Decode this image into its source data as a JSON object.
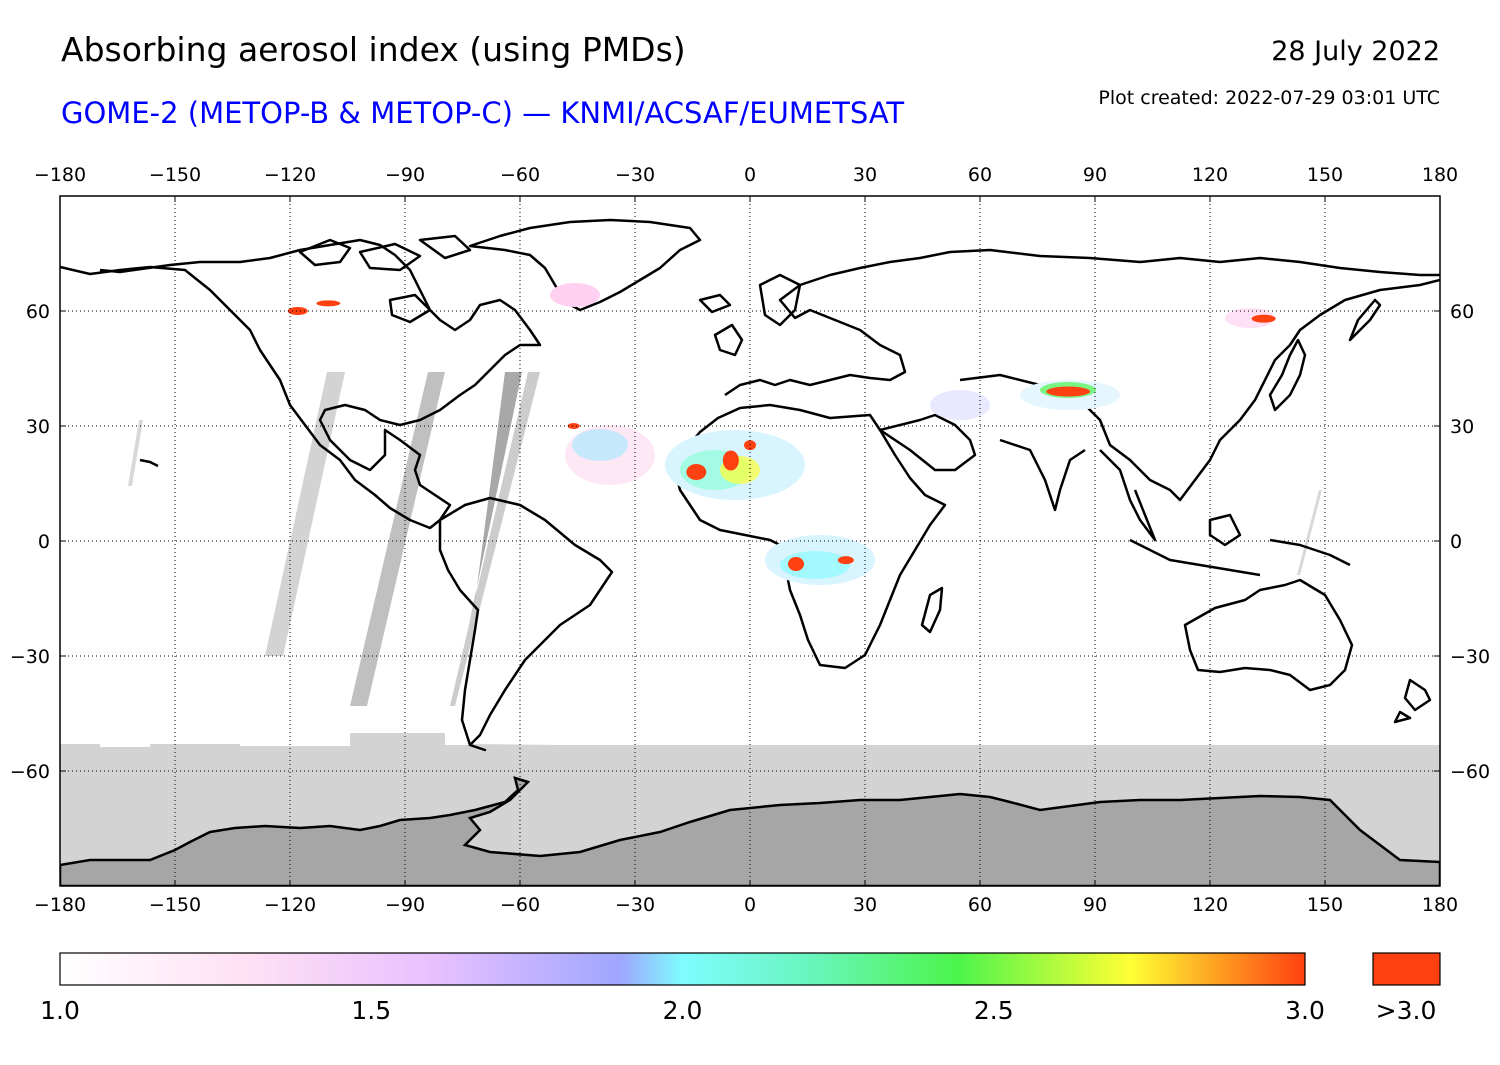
{
  "header": {
    "title": "Absorbing aerosol index (using PMDs)",
    "date": "28 July 2022",
    "subtitle": "GOME-2 (METOP-B & METOP-C) — KNMI/ACSAF/EUMETSAT",
    "plot_created": "Plot created: 2022-07-29 03:01 UTC"
  },
  "map": {
    "lon_range": [
      -180,
      180
    ],
    "lat_range": [
      -90,
      90
    ],
    "lon_ticks": [
      "−180",
      "−150",
      "−120",
      "−90",
      "−60",
      "−30",
      "0",
      "30",
      "60",
      "90",
      "120",
      "150",
      "180"
    ],
    "lat_ticks": [
      "60",
      "30",
      "0",
      "−30",
      "−60"
    ],
    "grid": "dotted every 30 degrees",
    "colors": {
      "no_data": "#d3d3d3",
      "antarctica": "#a6a6a6",
      "coast": "#000000",
      "high_aerosol": "#ff4010"
    },
    "hotspots": [
      {
        "region": "Western Canada",
        "lon": -115,
        "lat": 61
      },
      {
        "region": "West Africa / Sahara",
        "lon": -12,
        "lat": 18
      },
      {
        "region": "Central Africa",
        "lon": 15,
        "lat": -5
      },
      {
        "region": "Northwest China",
        "lon": 83,
        "lat": 39
      },
      {
        "region": "Northeast Asia",
        "lon": 136,
        "lat": 58
      }
    ]
  },
  "colorbar": {
    "min": 1.0,
    "max": 3.0,
    "tick_labels": [
      "1.0",
      "1.5",
      "2.0",
      "2.5",
      "3.0"
    ],
    "overflow_label": ">3.0",
    "overflow_color": "#ff4010",
    "gradient": [
      "#ffffff",
      "#ffd0f0",
      "#c8b4ff",
      "#9aa0ff",
      "#7ffcff",
      "#4cf54c",
      "#ffff33",
      "#ff4010"
    ]
  }
}
